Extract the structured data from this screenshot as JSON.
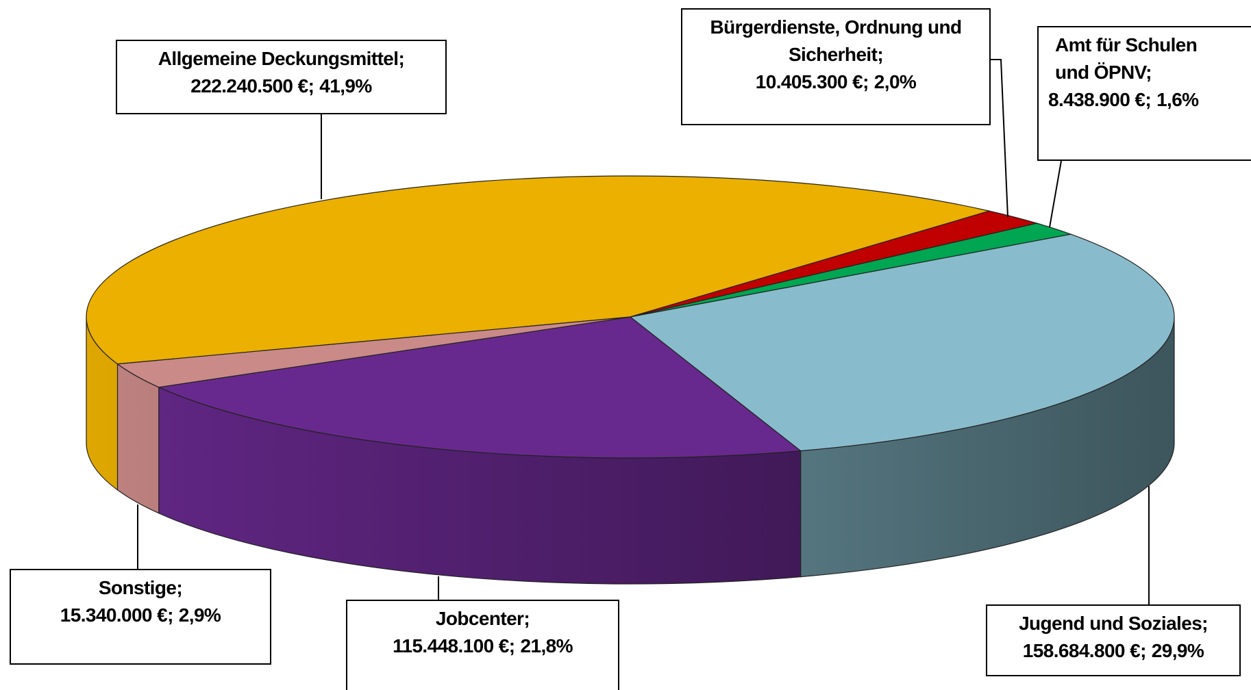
{
  "chart_data": {
    "type": "pie",
    "categories": [
      "Allgemeine Deckungsmittel",
      "Bürgerdienste, Ordnung und Sicherheit",
      "Amt für Schulen und ÖPNV",
      "Jugend und Soziales",
      "Jobcenter",
      "Sonstige"
    ],
    "values": [
      222240500,
      10405300,
      8438900,
      158684800,
      115448100,
      15340000
    ],
    "value_labels": [
      "222.240.500 €",
      "10.405.300 €",
      "8.438.900 €",
      "158.684.800 €",
      "115.448.100 €",
      "15.340.000 €"
    ],
    "percentages": [
      41.9,
      2.0,
      1.6,
      29.9,
      21.8,
      2.9
    ],
    "percentage_labels": [
      "41,9%",
      "2,0%",
      "1,6%",
      "29,9%",
      "21,8%",
      "2,9%"
    ],
    "separator": ";",
    "colors": [
      "#ebb000",
      "#c00000",
      "#00a651",
      "#88bccc",
      "#68298e",
      "#ca8a88"
    ]
  }
}
